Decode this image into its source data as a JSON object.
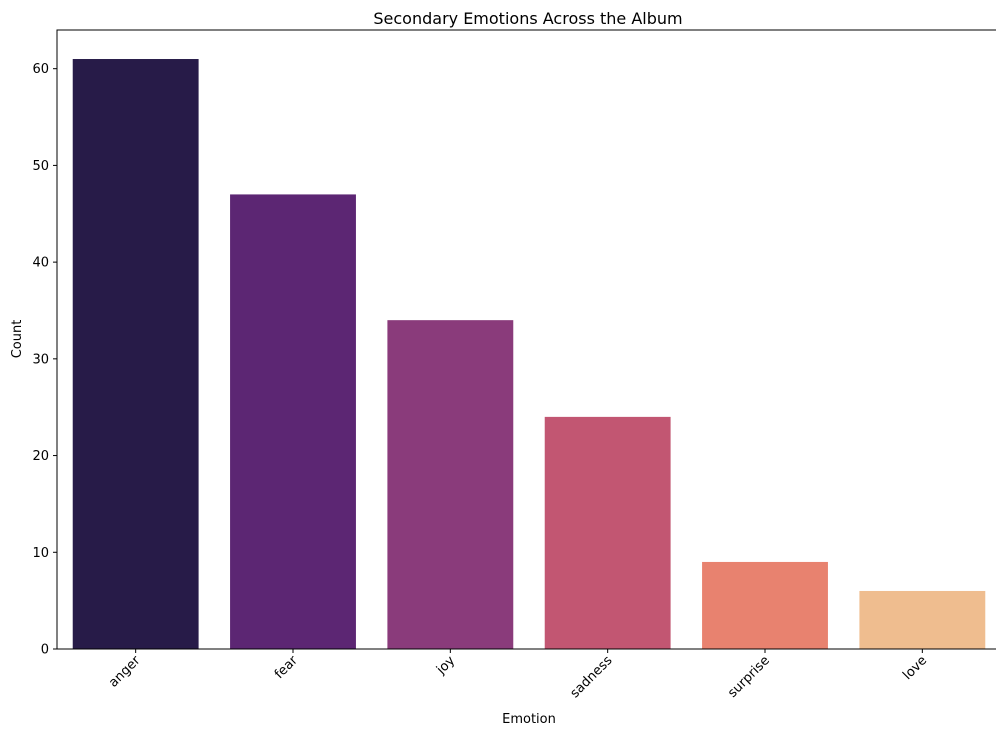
{
  "chart_data": {
    "type": "bar",
    "title": "Secondary Emotions Across the Album",
    "xlabel": "Emotion",
    "ylabel": "Count",
    "categories": [
      "anger",
      "fear",
      "joy",
      "sadness",
      "surprise",
      "love"
    ],
    "values": [
      61,
      47,
      34,
      24,
      9,
      6
    ],
    "colors": [
      "#271b48",
      "#5c2673",
      "#8a3b7b",
      "#c25672",
      "#e8826f",
      "#efbd8f"
    ],
    "ylim": [
      0,
      64
    ],
    "yticks": [
      0,
      10,
      20,
      30,
      40,
      50,
      60
    ],
    "grid": false,
    "legend": "none"
  }
}
